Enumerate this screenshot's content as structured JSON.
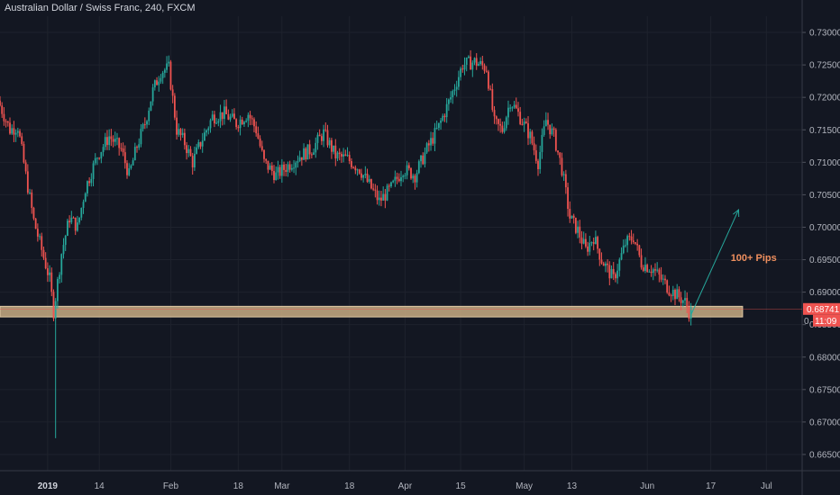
{
  "header": {
    "title": "Australian Dollar / Swiss Franc, 240, FXCM"
  },
  "colors": {
    "background": "#131722",
    "grid": "#1e222d",
    "up_candle": "#26a69a",
    "down_candle": "#ef5350",
    "support_zone": "#c8ab82",
    "annotation_arrow": "#26a69a",
    "annotation_text": "#ef8f5e",
    "price_tag": "#ef5350"
  },
  "price_tag": {
    "price": "0.68741",
    "countdown": "11:09",
    "partial_label": "0."
  },
  "annotation": {
    "text": "100+ Pips"
  },
  "chart_data": {
    "type": "candlestick",
    "title": "Australian Dollar / Swiss Franc, 240, FXCM",
    "ylim": [
      0.6625,
      0.7325
    ],
    "grid": true,
    "y_ticks": [
      "0.73000",
      "0.72500",
      "0.72000",
      "0.71500",
      "0.71000",
      "0.70500",
      "0.70000",
      "0.69500",
      "0.69000",
      "0.68500",
      "0.68000",
      "0.67500",
      "0.67000",
      "0.66500"
    ],
    "x_ticks": [
      {
        "label": "2019",
        "date": "2019-01-01",
        "bold": true
      },
      {
        "label": "14",
        "date": "2019-01-14"
      },
      {
        "label": "Feb",
        "date": "2019-02-01"
      },
      {
        "label": "18",
        "date": "2019-02-18"
      },
      {
        "label": "Mar",
        "date": "2019-03-01"
      },
      {
        "label": "18",
        "date": "2019-03-18"
      },
      {
        "label": "Apr",
        "date": "2019-04-01"
      },
      {
        "label": "15",
        "date": "2019-04-15"
      },
      {
        "label": "May",
        "date": "2019-05-01"
      },
      {
        "label": "13",
        "date": "2019-05-13"
      },
      {
        "label": "Jun",
        "date": "2019-06-01"
      },
      {
        "label": "17",
        "date": "2019-06-17"
      },
      {
        "label": "Jul",
        "date": "2019-07-01"
      }
    ],
    "x_range": [
      "2018-12-20",
      "2019-07-10"
    ],
    "anchors": [
      [
        "2018-12-20",
        0.7195
      ],
      [
        "2018-12-23",
        0.715
      ],
      [
        "2018-12-25",
        0.7155
      ],
      [
        "2018-12-27",
        0.708
      ],
      [
        "2018-12-29",
        0.701
      ],
      [
        "2018-12-31",
        0.6965
      ],
      [
        "2019-01-02",
        0.692
      ],
      [
        "2019-01-03",
        0.687
      ],
      [
        "2019-01-05",
        0.696
      ],
      [
        "2019-01-07",
        0.7015
      ],
      [
        "2019-01-09",
        0.7
      ],
      [
        "2019-01-11",
        0.706
      ],
      [
        "2019-01-14",
        0.711
      ],
      [
        "2019-01-17",
        0.714
      ],
      [
        "2019-01-20",
        0.712
      ],
      [
        "2019-01-22",
        0.708
      ],
      [
        "2019-01-24",
        0.7125
      ],
      [
        "2019-01-26",
        0.716
      ],
      [
        "2019-01-28",
        0.721
      ],
      [
        "2019-01-30",
        0.724
      ],
      [
        "2019-02-01",
        0.7245
      ],
      [
        "2019-02-03",
        0.715
      ],
      [
        "2019-02-05",
        0.713
      ],
      [
        "2019-02-07",
        0.71
      ],
      [
        "2019-02-09",
        0.713
      ],
      [
        "2019-02-12",
        0.717
      ],
      [
        "2019-02-15",
        0.7175
      ],
      [
        "2019-02-18",
        0.716
      ],
      [
        "2019-02-21",
        0.7175
      ],
      [
        "2019-02-23",
        0.715
      ],
      [
        "2019-02-25",
        0.71
      ],
      [
        "2019-02-28",
        0.708
      ],
      [
        "2019-03-03",
        0.7095
      ],
      [
        "2019-03-06",
        0.711
      ],
      [
        "2019-03-09",
        0.712
      ],
      [
        "2019-03-12",
        0.7145
      ],
      [
        "2019-03-15",
        0.711
      ],
      [
        "2019-03-18",
        0.7105
      ],
      [
        "2019-03-21",
        0.709
      ],
      [
        "2019-03-24",
        0.706
      ],
      [
        "2019-03-26",
        0.704
      ],
      [
        "2019-03-29",
        0.706
      ],
      [
        "2019-04-01",
        0.709
      ],
      [
        "2019-04-04",
        0.708
      ],
      [
        "2019-04-07",
        0.712
      ],
      [
        "2019-04-10",
        0.7155
      ],
      [
        "2019-04-13",
        0.72
      ],
      [
        "2019-04-16",
        0.725
      ],
      [
        "2019-04-19",
        0.7255
      ],
      [
        "2019-04-22",
        0.7245
      ],
      [
        "2019-04-24",
        0.716
      ],
      [
        "2019-04-26",
        0.715
      ],
      [
        "2019-04-28",
        0.7195
      ],
      [
        "2019-04-30",
        0.7175
      ],
      [
        "2019-05-03",
        0.714
      ],
      [
        "2019-05-05",
        0.71
      ],
      [
        "2019-05-07",
        0.7165
      ],
      [
        "2019-05-09",
        0.714
      ],
      [
        "2019-05-11",
        0.709
      ],
      [
        "2019-05-13",
        0.7015
      ],
      [
        "2019-05-15",
        0.6995
      ],
      [
        "2019-05-17",
        0.6965
      ],
      [
        "2019-05-19",
        0.6985
      ],
      [
        "2019-05-21",
        0.695
      ],
      [
        "2019-05-24",
        0.692
      ],
      [
        "2019-05-27",
        0.6975
      ],
      [
        "2019-05-29",
        0.6985
      ],
      [
        "2019-05-31",
        0.6945
      ],
      [
        "2019-06-03",
        0.6935
      ],
      [
        "2019-06-05",
        0.692
      ],
      [
        "2019-06-07",
        0.6905
      ],
      [
        "2019-06-09",
        0.6895
      ],
      [
        "2019-06-11",
        0.6885
      ],
      [
        "2019-06-12",
        0.687
      ]
    ],
    "notable_wick": {
      "date": "2019-01-03",
      "low": 0.6675,
      "high": 0.6885
    },
    "support_zone": {
      "from": "2018-12-20",
      "to": "2019-06-25",
      "low": 0.6866,
      "high": 0.6874
    },
    "arrow": {
      "from": [
        "2019-06-12",
        0.6865
      ],
      "to": [
        "2019-06-24",
        0.7027
      ]
    },
    "annotation_text": {
      "text": "100+ Pips",
      "date": "2019-06-22",
      "price": 0.6948
    },
    "last_price": 0.68741,
    "countdown": "11:09"
  }
}
